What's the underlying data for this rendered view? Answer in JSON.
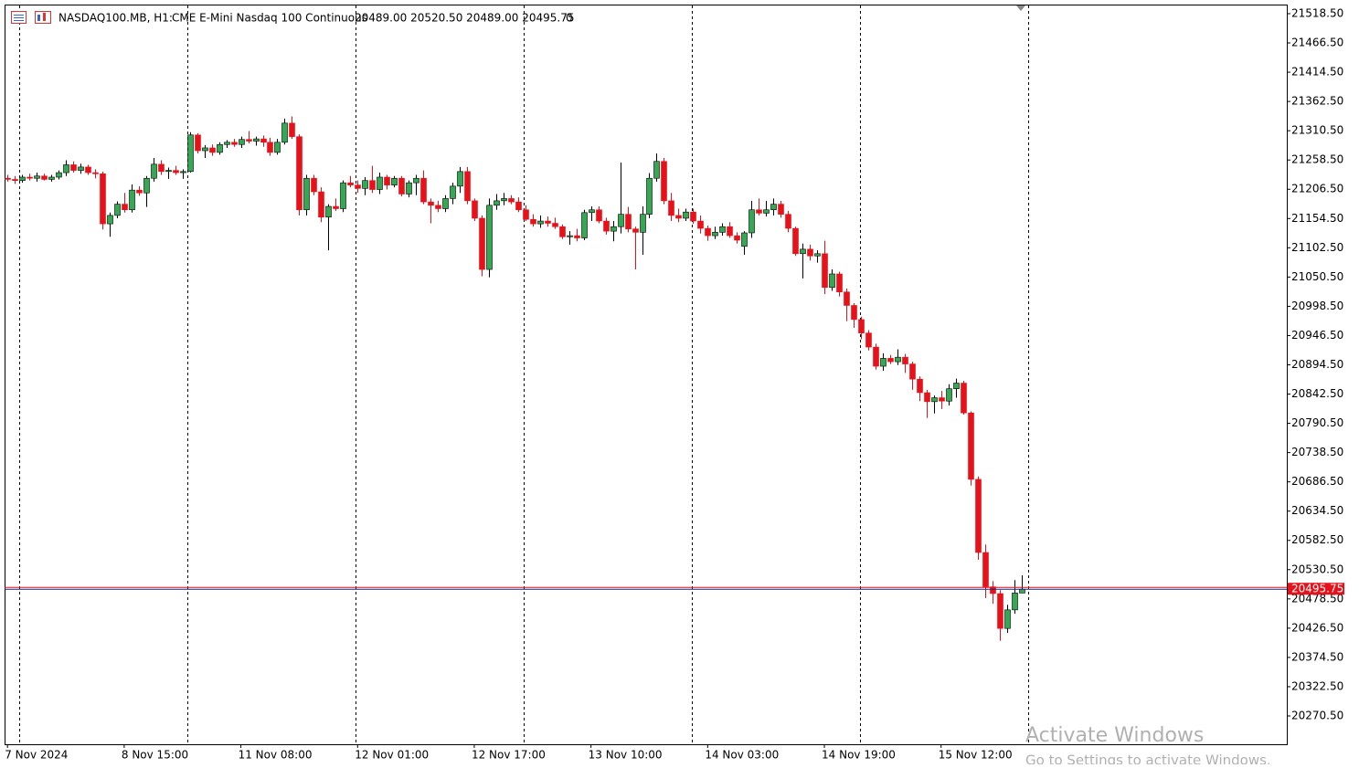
{
  "chart_data": {
    "type": "candlestick",
    "symbol": "NASDAQ100.MB, H1:",
    "description": "CME E-Mini Nasdaq 100 Continuous",
    "header_ohlc": "20489.00 20520.50 20489.00 20495.75",
    "header_volume": "0",
    "open": [
      21226,
      21224,
      21222,
      21228,
      21226,
      21230,
      21224,
      21228,
      21236,
      21250,
      21240,
      21246,
      21236,
      21234,
      21145,
      21160,
      21180,
      21170,
      21205,
      21200,
      21226,
      21251,
      21238,
      21240,
      21236,
      21238,
      21303,
      21275,
      21280,
      21272,
      21286,
      21290,
      21286,
      21295,
      21292,
      21296,
      21290,
      21272,
      21290,
      21324,
      21300,
      21170,
      21226,
      21202,
      21157,
      21176,
      21172,
      21218,
      21214,
      21208,
      21222,
      21206,
      21228,
      21214,
      21226,
      21198,
      21218,
      21226,
      21184,
      21178,
      21172,
      21190,
      21212,
      21238,
      21186,
      21155,
      21064,
      21178,
      21186,
      21190,
      21184,
      21170,
      21153,
      21145,
      21150,
      21146,
      21140,
      21122,
      21124,
      21120,
      21165,
      21170,
      21150,
      21132,
      21140,
      21162,
      21136,
      21130,
      21162,
      21226,
      21256,
      21186,
      21160,
      21155,
      21166,
      21150,
      21137,
      21124,
      21130,
      21140,
      21124,
      21105,
      21129,
      21170,
      21164,
      21170,
      21180,
      21162,
      21137,
      21092,
      21100,
      21088,
      21092,
      21032,
      21056,
      21024,
      21000,
      20975,
      20951,
      20926,
      20892,
      20906,
      20900,
      20908,
      20896,
      20869,
      20845,
      20829,
      20836,
      20830,
      20852,
      20862,
      20809,
      20691,
      20561,
      20500,
      20488,
      20426,
      20459,
      20489
    ],
    "high": [
      21232,
      21230,
      21232,
      21234,
      21236,
      21234,
      21232,
      21240,
      21258,
      21256,
      21252,
      21250,
      21242,
      21238,
      21165,
      21185,
      21200,
      21215,
      21212,
      21230,
      21262,
      21258,
      21245,
      21248,
      21242,
      21308,
      21306,
      21285,
      21286,
      21290,
      21294,
      21296,
      21300,
      21310,
      21300,
      21302,
      21298,
      21296,
      21332,
      21336,
      21304,
      21232,
      21232,
      21210,
      21180,
      21190,
      21222,
      21230,
      21222,
      21228,
      21248,
      21236,
      21232,
      21230,
      21230,
      21222,
      21232,
      21240,
      21190,
      21186,
      21196,
      21218,
      21246,
      21246,
      21190,
      21160,
      21190,
      21198,
      21200,
      21196,
      21192,
      21178,
      21162,
      21160,
      21158,
      21156,
      21144,
      21132,
      21136,
      21170,
      21176,
      21176,
      21156,
      21150,
      21254,
      21175,
      21140,
      21176,
      21235,
      21270,
      21262,
      21200,
      21172,
      21172,
      21172,
      21160,
      21142,
      21140,
      21146,
      21148,
      21130,
      21132,
      21186,
      21190,
      21186,
      21190,
      21186,
      21168,
      21140,
      21110,
      21108,
      21098,
      21115,
      21064,
      21060,
      21030,
      21004,
      20980,
      20956,
      20932,
      20915,
      20912,
      20922,
      20914,
      20900,
      20874,
      20850,
      20840,
      20848,
      20860,
      20870,
      20866,
      20812,
      20696,
      20575,
      20510,
      20494,
      20468,
      20512,
      20520.5
    ],
    "low": [
      21220,
      21216,
      21218,
      21222,
      21220,
      21222,
      21220,
      21224,
      21230,
      21236,
      21234,
      21232,
      21226,
      21135,
      21122,
      21155,
      21165,
      21165,
      21195,
      21175,
      21220,
      21232,
      21225,
      21232,
      21225,
      21236,
      21270,
      21262,
      21266,
      21268,
      21280,
      21282,
      21280,
      21288,
      21284,
      21282,
      21266,
      21268,
      21286,
      21296,
      21160,
      21160,
      21196,
      21148,
      21098,
      21168,
      21166,
      21210,
      21200,
      21196,
      21200,
      21198,
      21206,
      21210,
      21194,
      21192,
      21196,
      21180,
      21146,
      21166,
      21166,
      21180,
      21200,
      21180,
      21150,
      21052,
      21050,
      21170,
      21178,
      21180,
      21166,
      21150,
      21140,
      21138,
      21140,
      21136,
      21118,
      21108,
      21114,
      21116,
      21150,
      21146,
      21126,
      21114,
      21128,
      21130,
      21064,
      21090,
      21155,
      21220,
      21180,
      21150,
      21148,
      21150,
      21145,
      21128,
      21115,
      21118,
      21124,
      21120,
      21110,
      21090,
      21120,
      21160,
      21158,
      21160,
      21156,
      21130,
      21088,
      21048,
      21080,
      21076,
      21020,
      21026,
      21016,
      20972,
      20960,
      20940,
      20920,
      20886,
      20884,
      20896,
      20894,
      20880,
      20850,
      20830,
      20800,
      20808,
      20816,
      20822,
      20836,
      20806,
      20680,
      20548,
      20480,
      20470,
      20404,
      20418,
      20452,
      20489
    ],
    "close": [
      21224,
      21222,
      21228,
      21226,
      21230,
      21224,
      21228,
      21236,
      21250,
      21240,
      21246,
      21236,
      21234,
      21145,
      21160,
      21180,
      21170,
      21205,
      21200,
      21226,
      21251,
      21238,
      21240,
      21236,
      21238,
      21303,
      21275,
      21280,
      21272,
      21286,
      21290,
      21286,
      21295,
      21292,
      21296,
      21290,
      21272,
      21290,
      21324,
      21300,
      21170,
      21226,
      21202,
      21157,
      21176,
      21172,
      21218,
      21214,
      21208,
      21222,
      21206,
      21228,
      21214,
      21226,
      21198,
      21218,
      21226,
      21184,
      21178,
      21172,
      21190,
      21212,
      21238,
      21186,
      21155,
      21064,
      21178,
      21186,
      21190,
      21184,
      21170,
      21153,
      21145,
      21150,
      21146,
      21140,
      21122,
      21124,
      21120,
      21165,
      21170,
      21150,
      21132,
      21140,
      21162,
      21136,
      21130,
      21162,
      21226,
      21256,
      21186,
      21160,
      21155,
      21166,
      21150,
      21137,
      21124,
      21130,
      21140,
      21124,
      21116,
      21129,
      21170,
      21164,
      21170,
      21180,
      21162,
      21137,
      21092,
      21100,
      21088,
      21092,
      21032,
      21056,
      21024,
      21000,
      20975,
      20951,
      20926,
      20892,
      20906,
      20900,
      20908,
      20896,
      20869,
      20845,
      20829,
      20836,
      20830,
      20852,
      20862,
      20809,
      20691,
      20561,
      20500,
      20488,
      20426,
      20459,
      20489,
      20495.75
    ],
    "xticks": [
      {
        "value": 0,
        "label": "7 Nov 2024"
      },
      {
        "value": 16,
        "label": "8 Nov 15:00"
      },
      {
        "value": 32,
        "label": "11 Nov 08:00"
      },
      {
        "value": 48,
        "label": "12 Nov 01:00"
      },
      {
        "value": 64,
        "label": "12 Nov 17:00"
      },
      {
        "value": 80,
        "label": "13 Nov 10:00"
      },
      {
        "value": 96,
        "label": "14 Nov 03:00"
      },
      {
        "value": 112,
        "label": "14 Nov 19:00"
      },
      {
        "value": 128,
        "label": "15 Nov 12:00"
      }
    ],
    "xlim": [
      -0.4,
      175.4
    ],
    "ylim": [
      20220.2,
      21534.7
    ],
    "yticks": [
      {
        "value": 20270.5,
        "label": "20270.50"
      },
      {
        "value": 20322.5,
        "label": "20322.50"
      },
      {
        "value": 20374.5,
        "label": "20374.50"
      },
      {
        "value": 20426.5,
        "label": "20426.50"
      },
      {
        "value": 20478.5,
        "label": "20478.50"
      },
      {
        "value": 20530.5,
        "label": "20530.50"
      },
      {
        "value": 20582.5,
        "label": "20582.50"
      },
      {
        "value": 20634.5,
        "label": "20634.50"
      },
      {
        "value": 20686.5,
        "label": "20686.50"
      },
      {
        "value": 20738.5,
        "label": "20738.50"
      },
      {
        "value": 20790.5,
        "label": "20790.50"
      },
      {
        "value": 20842.5,
        "label": "20842.50"
      },
      {
        "value": 20894.5,
        "label": "20894.50"
      },
      {
        "value": 20946.5,
        "label": "20946.50"
      },
      {
        "value": 20998.5,
        "label": "20998.50"
      },
      {
        "value": 21050.5,
        "label": "21050.50"
      },
      {
        "value": 21102.5,
        "label": "21102.50"
      },
      {
        "value": 21154.5,
        "label": "21154.50"
      },
      {
        "value": 21206.5,
        "label": "21206.50"
      },
      {
        "value": 21258.5,
        "label": "21258.50"
      },
      {
        "value": 21310.5,
        "label": "21310.50"
      },
      {
        "value": 21362.5,
        "label": "21362.50"
      },
      {
        "value": 21414.5,
        "label": "21414.50"
      },
      {
        "value": 21466.5,
        "label": "21466.50"
      },
      {
        "value": 21518.5,
        "label": "21518.50"
      }
    ],
    "price_line": 20495.75,
    "up_color": "#34a853",
    "down_color": "#e8111a",
    "watermark_title": "Activate Windows",
    "watermark_text": "Go to Settings to activate Windows."
  }
}
